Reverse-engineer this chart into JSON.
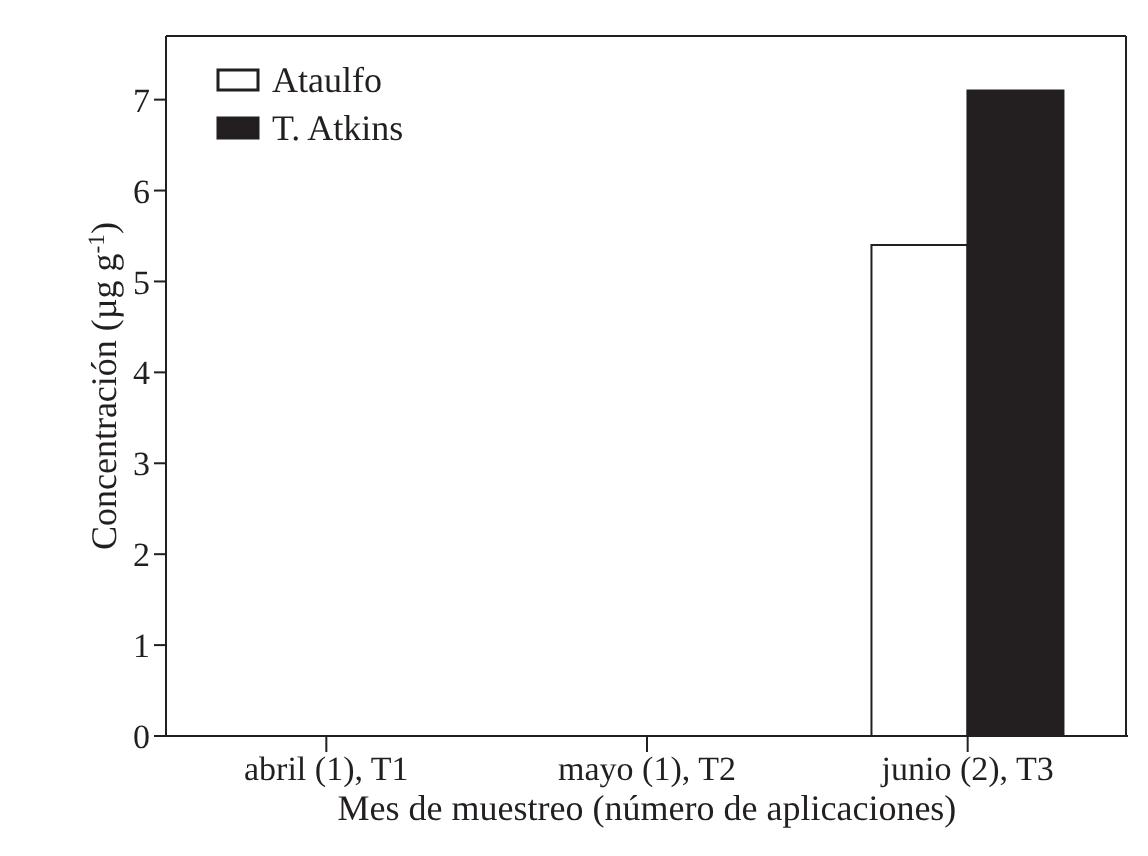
{
  "chart_data": {
    "type": "bar",
    "xlabel": "Mes de muestreo (número de aplicaciones)",
    "ylabel": "Concentración (µg g$^{-1}$)",
    "categories": [
      "abril (1), T1",
      "mayo (1), T2",
      "junio (2), T3"
    ],
    "series": [
      {
        "name": "Ataulfo",
        "color": "#ffffff",
        "values": [
          0,
          0,
          5.4
        ]
      },
      {
        "name": "T. Atkins",
        "color": "#231f20",
        "values": [
          0,
          0,
          7.1
        ]
      }
    ],
    "ylim": [
      0,
      7.7
    ],
    "yticks": [
      0,
      1,
      2,
      3,
      4,
      5,
      6,
      7
    ],
    "legend": "top left"
  }
}
